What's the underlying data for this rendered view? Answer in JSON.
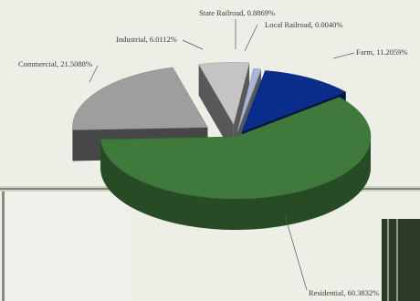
{
  "chart_data": {
    "type": "pie",
    "title": "",
    "slices": [
      {
        "name": "Residential",
        "label": "Residential, 60.3832%",
        "value": 60.3832,
        "color": "#3f7a3c"
      },
      {
        "name": "Farm",
        "label": "Farm, 11.2059%",
        "value": 11.2059,
        "color": "#0a2d8c"
      },
      {
        "name": "Local Railroad",
        "label": "Local Railroad, 0.0040%",
        "value": 0.004,
        "color": "#b9c1d6"
      },
      {
        "name": "State Railroad",
        "label": "State Railroad, 0.8869%",
        "value": 0.8869,
        "color": "#a9b6d4"
      },
      {
        "name": "Industrial",
        "label": "Industrial, 6.0112%",
        "value": 6.0112,
        "color": "#c4c4c4"
      },
      {
        "name": "Commercial",
        "label": "Commercial, 21.5088%",
        "value": 21.5088,
        "color": "#9e9e9e"
      }
    ],
    "exploded": true,
    "three_d": true,
    "legend": "none"
  },
  "colors": {
    "background": "#edeee6",
    "frame_dark": "#2f3a2a"
  }
}
